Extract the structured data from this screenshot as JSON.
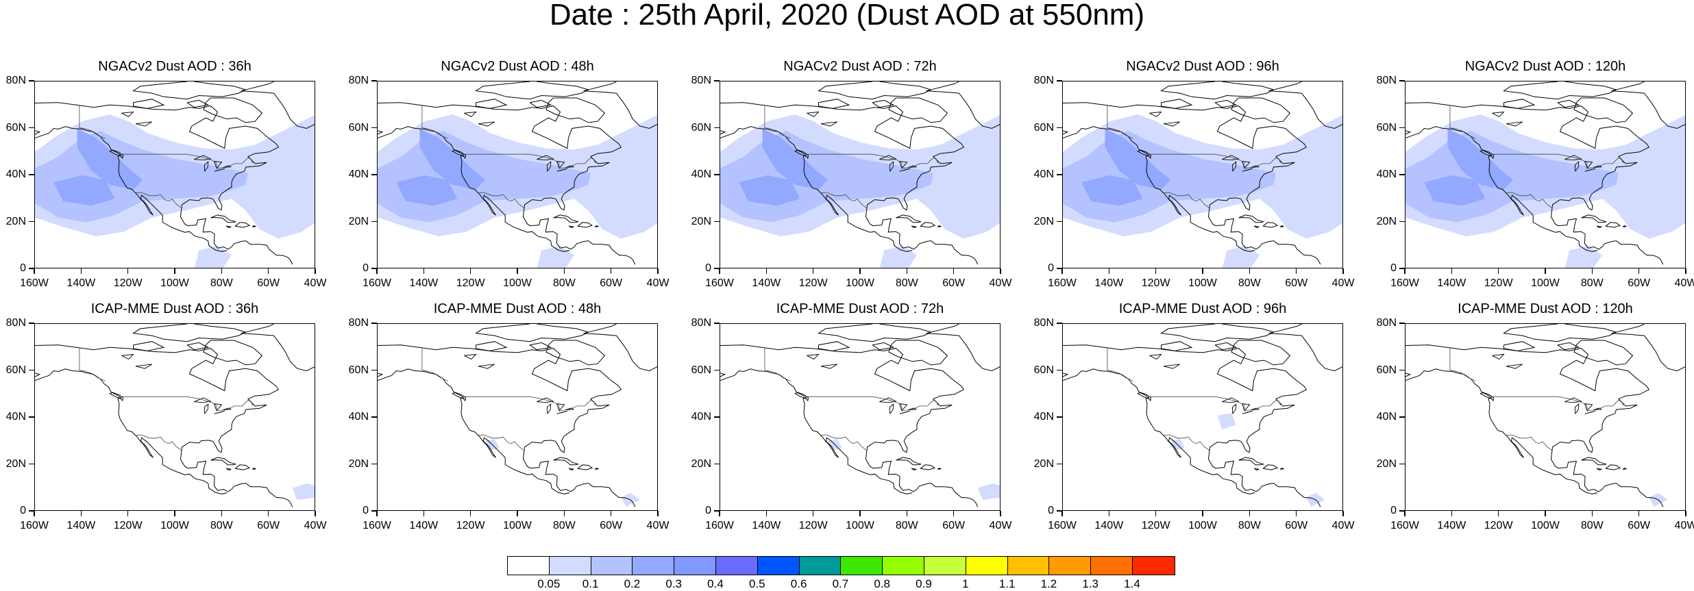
{
  "title": "Date : 25th April, 2020 (Dust AOD at 550nm)",
  "lat_ticks": [
    "80N",
    "60N",
    "40N",
    "20N",
    "0"
  ],
  "lon_ticks": [
    "160W",
    "140W",
    "120W",
    "100W",
    "80W",
    "60W",
    "40W"
  ],
  "panels": [
    {
      "title": "NGACv2 Dust AOD : 36h",
      "model": "NGACv2",
      "lead": "36h",
      "coverage": "broad"
    },
    {
      "title": "NGACv2 Dust AOD : 48h",
      "model": "NGACv2",
      "lead": "48h",
      "coverage": "broad"
    },
    {
      "title": "NGACv2 Dust AOD : 72h",
      "model": "NGACv2",
      "lead": "72h",
      "coverage": "broad"
    },
    {
      "title": "NGACv2 Dust AOD : 96h",
      "model": "NGACv2",
      "lead": "96h",
      "coverage": "broad"
    },
    {
      "title": "NGACv2 Dust AOD : 120h",
      "model": "NGACv2",
      "lead": "120h",
      "coverage": "broad"
    },
    {
      "title": "ICAP-MME Dust AOD : 36h",
      "model": "ICAP-MME",
      "lead": "36h",
      "coverage": "sparse"
    },
    {
      "title": "ICAP-MME Dust AOD : 48h",
      "model": "ICAP-MME",
      "lead": "48h",
      "coverage": "sparse"
    },
    {
      "title": "ICAP-MME Dust AOD : 72h",
      "model": "ICAP-MME",
      "lead": "72h",
      "coverage": "sparse"
    },
    {
      "title": "ICAP-MME Dust AOD : 96h",
      "model": "ICAP-MME",
      "lead": "96h",
      "coverage": "sparse"
    },
    {
      "title": "ICAP-MME Dust AOD : 120h",
      "model": "ICAP-MME",
      "lead": "120h",
      "coverage": "sparse"
    }
  ],
  "colorbar": {
    "labels": [
      "0.05",
      "0.1",
      "0.2",
      "0.3",
      "0.4",
      "0.5",
      "0.6",
      "0.7",
      "0.8",
      "0.9",
      "1",
      "1.1",
      "1.2",
      "1.3",
      "1.4"
    ],
    "colors": [
      "#ffffff",
      "#d3dcff",
      "#b4c3ff",
      "#93a8ff",
      "#8098ff",
      "#6a6cff",
      "#0057ff",
      "#009a9a",
      "#3ce700",
      "#95ff00",
      "#c7ff3c",
      "#ffff00",
      "#ffc000",
      "#ff9a00",
      "#ff7000",
      "#ff2a00"
    ]
  },
  "colors": {
    "shade_light": "#d3dcff",
    "shade_mid": "#b4c3ff",
    "shade_dark": "#93a8ff",
    "coast": "#000000"
  }
}
